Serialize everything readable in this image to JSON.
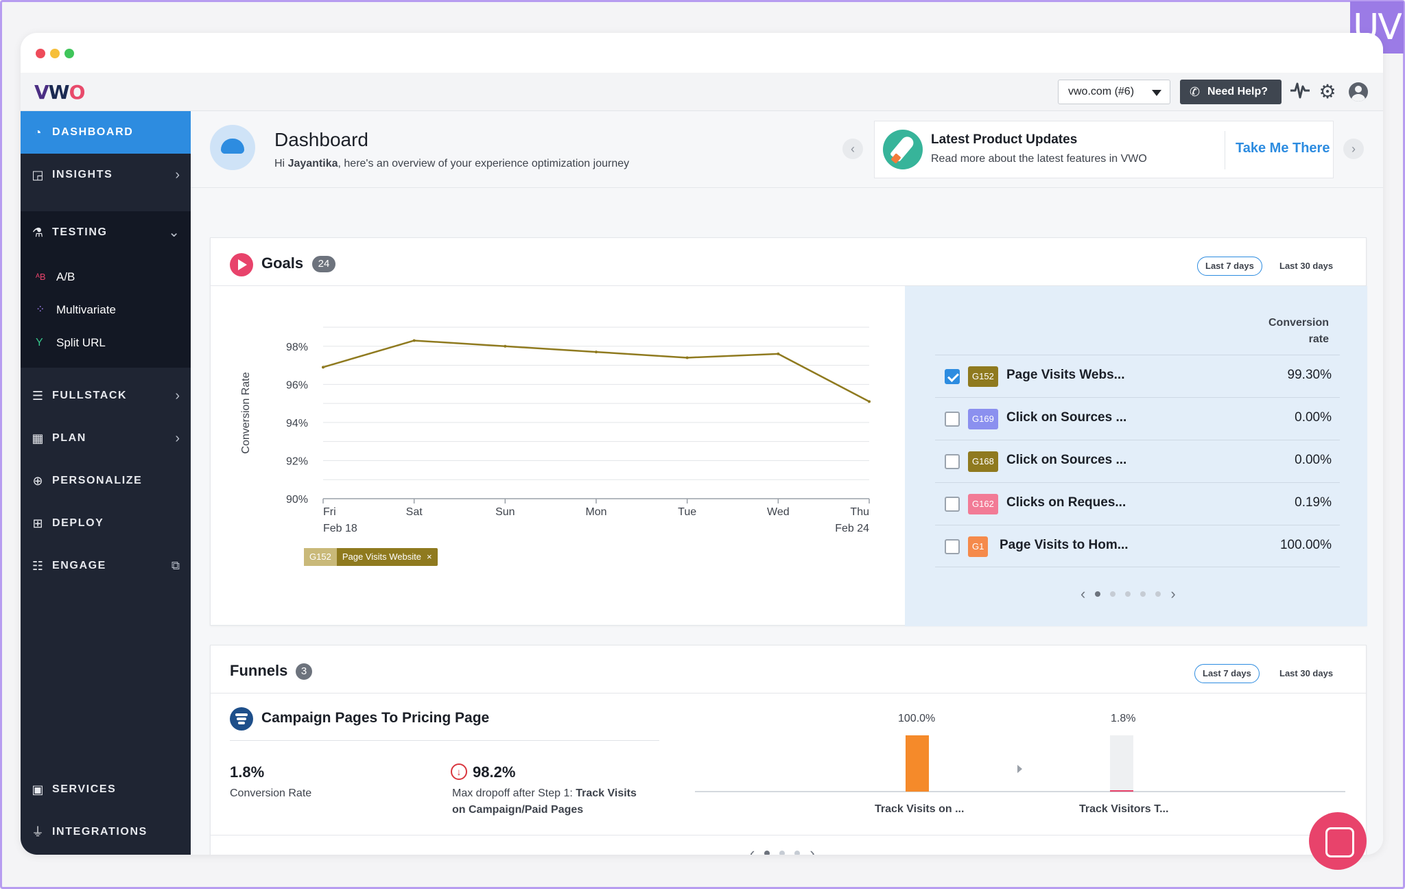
{
  "badge": "UV",
  "window": {
    "dots": [
      "#ee4b5a",
      "#f6bf3a",
      "#3fc55a"
    ]
  },
  "topbar": {
    "logo": {
      "v": "V",
      "w": "W",
      "o": "O"
    },
    "site_select": "vwo.com  (#6)",
    "help_label": "Need Help?",
    "help_icon": "phone-icon",
    "icons": [
      "activity-icon",
      "gear-icon",
      "user-avatar-icon"
    ]
  },
  "sidebar": {
    "accent": "#2d8ce0",
    "items": [
      {
        "label": "DASHBOARD",
        "icon": "dashboard-icon",
        "active": true
      },
      {
        "label": "INSIGHTS",
        "icon": "insights-icon",
        "chevron": true
      },
      {
        "label": "TESTING",
        "icon": "flask-icon",
        "expanded": true
      },
      {
        "label": "FULLSTACK",
        "icon": "layers-icon",
        "chevron": true
      },
      {
        "label": "PLAN",
        "icon": "calendar-icon",
        "chevron": true
      },
      {
        "label": "PERSONALIZE",
        "icon": "target-icon"
      },
      {
        "label": "DEPLOY",
        "icon": "deploy-icon"
      },
      {
        "label": "ENGAGE",
        "icon": "engage-icon",
        "external": true
      },
      {
        "label": "SERVICES",
        "icon": "briefcase-icon"
      },
      {
        "label": "INTEGRATIONS",
        "icon": "plug-icon"
      }
    ],
    "testing_sub": [
      {
        "label": "A/B",
        "icon": "ab-icon"
      },
      {
        "label": "Multivariate",
        "icon": "grid-icon"
      },
      {
        "label": "Split URL",
        "icon": "split-icon"
      }
    ]
  },
  "header": {
    "title": "Dashboard",
    "greeting_prefix": "Hi ",
    "user": "Jayantika",
    "greeting_suffix": ", here's an overview of your experience optimization journey"
  },
  "updates": {
    "title": "Latest Product Updates",
    "subtitle": "Read more about the latest features in VWO",
    "link": "Take Me There"
  },
  "goals": {
    "title": "Goals",
    "count": "24",
    "range_active": "Last 7 days",
    "range_other": "Last 30 days",
    "conversion_header_1": "Conversion",
    "conversion_header_2": "rate",
    "selected_chip": {
      "id": "G152",
      "label": "Page Visits Website",
      "close": "×"
    },
    "rows": [
      {
        "checked": true,
        "id": "G152",
        "color": "#8f7a1f",
        "name": "Page Visits Webs...",
        "rate": "99.30%"
      },
      {
        "checked": false,
        "id": "G169",
        "color": "#8b90ef",
        "name": "Click on Sources ...",
        "rate": "0.00%"
      },
      {
        "checked": false,
        "id": "G168",
        "color": "#8f7a1f",
        "name": "Click on Sources ...",
        "rate": "0.00%"
      },
      {
        "checked": false,
        "id": "G162",
        "color": "#f27b96",
        "name": "Clicks on Reques...",
        "rate": "0.19%"
      },
      {
        "checked": false,
        "id": "G1",
        "color": "#f58a4b",
        "name": "Page Visits to Hom...",
        "rate": "100.00%"
      }
    ],
    "pager": {
      "pages": 6,
      "current": 1
    }
  },
  "chart_data": {
    "type": "line",
    "title": "",
    "xlabel": "",
    "ylabel": "Conversion Rate",
    "categories": [
      "Fri",
      "Sat",
      "Sun",
      "Mon",
      "Tue",
      "Wed",
      "Thu"
    ],
    "date_labels": {
      "first": "Feb 18",
      "last": "Feb 24"
    },
    "ylim": [
      90,
      99
    ],
    "yticks": [
      "90%",
      "92%",
      "94%",
      "96%",
      "98%"
    ],
    "grid": true,
    "series": [
      {
        "name": "Page Visits Website",
        "color": "#8f7a1f",
        "values": [
          96.9,
          98.3,
          98.0,
          97.7,
          97.4,
          97.6,
          95.1
        ]
      }
    ]
  },
  "funnels": {
    "title": "Funnels",
    "count": "3",
    "range_active": "Last 7 days",
    "range_other": "Last 30 days",
    "funnel_name": "Campaign Pages To Pricing Page",
    "conversion_value": "1.8%",
    "conversion_label": "Conversion Rate",
    "dropoff_value": "98.2%",
    "dropoff_prefix": "Max dropoff after Step 1: ",
    "dropoff_step_1": "Track Visits",
    "dropoff_step_2": "on Campaign/Paid Pages",
    "steps": [
      {
        "label": "Track Visits on ...",
        "pct": "100.0%",
        "value": 100,
        "color": "#f58a2a"
      },
      {
        "label": "Track Visitors T...",
        "pct": "1.8%",
        "value": 1.8,
        "color": "#e8436b"
      }
    ],
    "pager": {
      "pages": 3,
      "current": 1
    }
  },
  "chat": {
    "icon": "chat-icon"
  }
}
